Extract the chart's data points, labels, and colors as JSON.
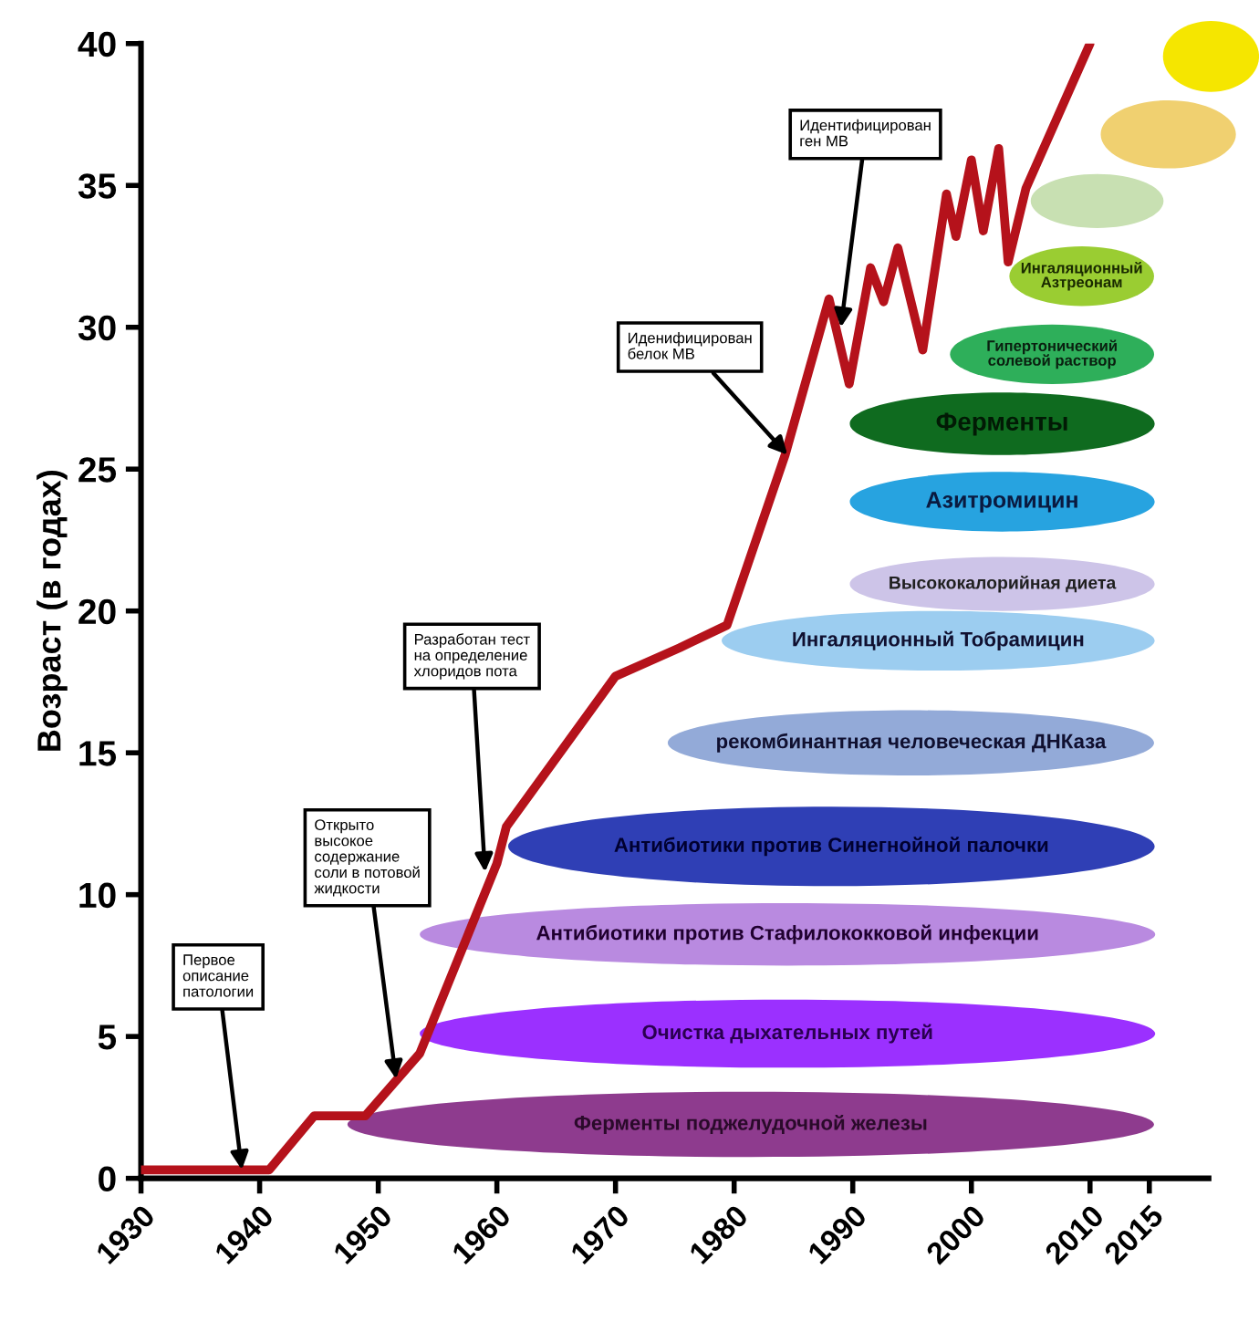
{
  "chart_data": {
    "type": "line",
    "ylabel": "Возраст (в годах)",
    "x": [
      1930,
      1940.8,
      1944.6,
      1948.9,
      1953.5,
      1960,
      1960.8,
      1970,
      1975.4,
      1979.4,
      1984.3,
      1988,
      1989.7,
      1991.5,
      1992.6,
      1993.8,
      1995.9,
      1997.9,
      1998.7,
      2000,
      2001,
      2002.3,
      2003.1,
      2004.6,
      2010
    ],
    "series": [
      {
        "color": "#b5121b",
        "values": [
          0.3,
          0.3,
          2.2,
          2.2,
          4.4,
          11.1,
          12.4,
          17.7,
          18.7,
          19.5,
          25.5,
          31,
          28,
          32.1,
          30.9,
          32.8,
          29.2,
          34.7,
          33.2,
          35.9,
          33.4,
          36.3,
          32.3,
          34.9,
          40
        ]
      }
    ],
    "xlim": [
      1930,
      2020
    ],
    "xticks": [
      1930,
      1940,
      1950,
      1960,
      1970,
      1980,
      1990,
      2000,
      2010,
      2015
    ],
    "ylim": [
      0,
      40
    ],
    "yticks": [
      0,
      5,
      10,
      15,
      20,
      25,
      30,
      35,
      40
    ],
    "grid": false,
    "legend": false,
    "line_style": "solid",
    "annotations": [
      {
        "text": "Первое\nописание\nпатологии",
        "x": 1938.5,
        "y": 0.3
      },
      {
        "text": "Открыто\nвысокое\nсодержание\nсоли в потовой\nжидкости",
        "x": 1951.5,
        "y": 3.5
      },
      {
        "text": "Разработан тест\nна определение\nхлоридов пота",
        "x": 1959,
        "y": 10.8
      },
      {
        "text": "Иденифицирован\nбелок МВ",
        "x": 1984.5,
        "y": 25.5
      },
      {
        "text": "Идентифицирован\nген МВ",
        "x": 1989,
        "y": 30
      },
      "Ферменты поджелудочной железы",
      "Очистка дыхательных путей",
      "Антибиотики против Стафилококковой инфекции",
      "Антибиотики против Синегнойной палочки",
      "рекомбинантная человеческая ДНКаза",
      "Ингаляционный Тобрамицин",
      "Высококалорийная диета",
      "Азитромицин",
      "Ферменты",
      "Гипертонический\nсолевой раствор",
      "Ингаляционный\nАзтреонам"
    ]
  }
}
